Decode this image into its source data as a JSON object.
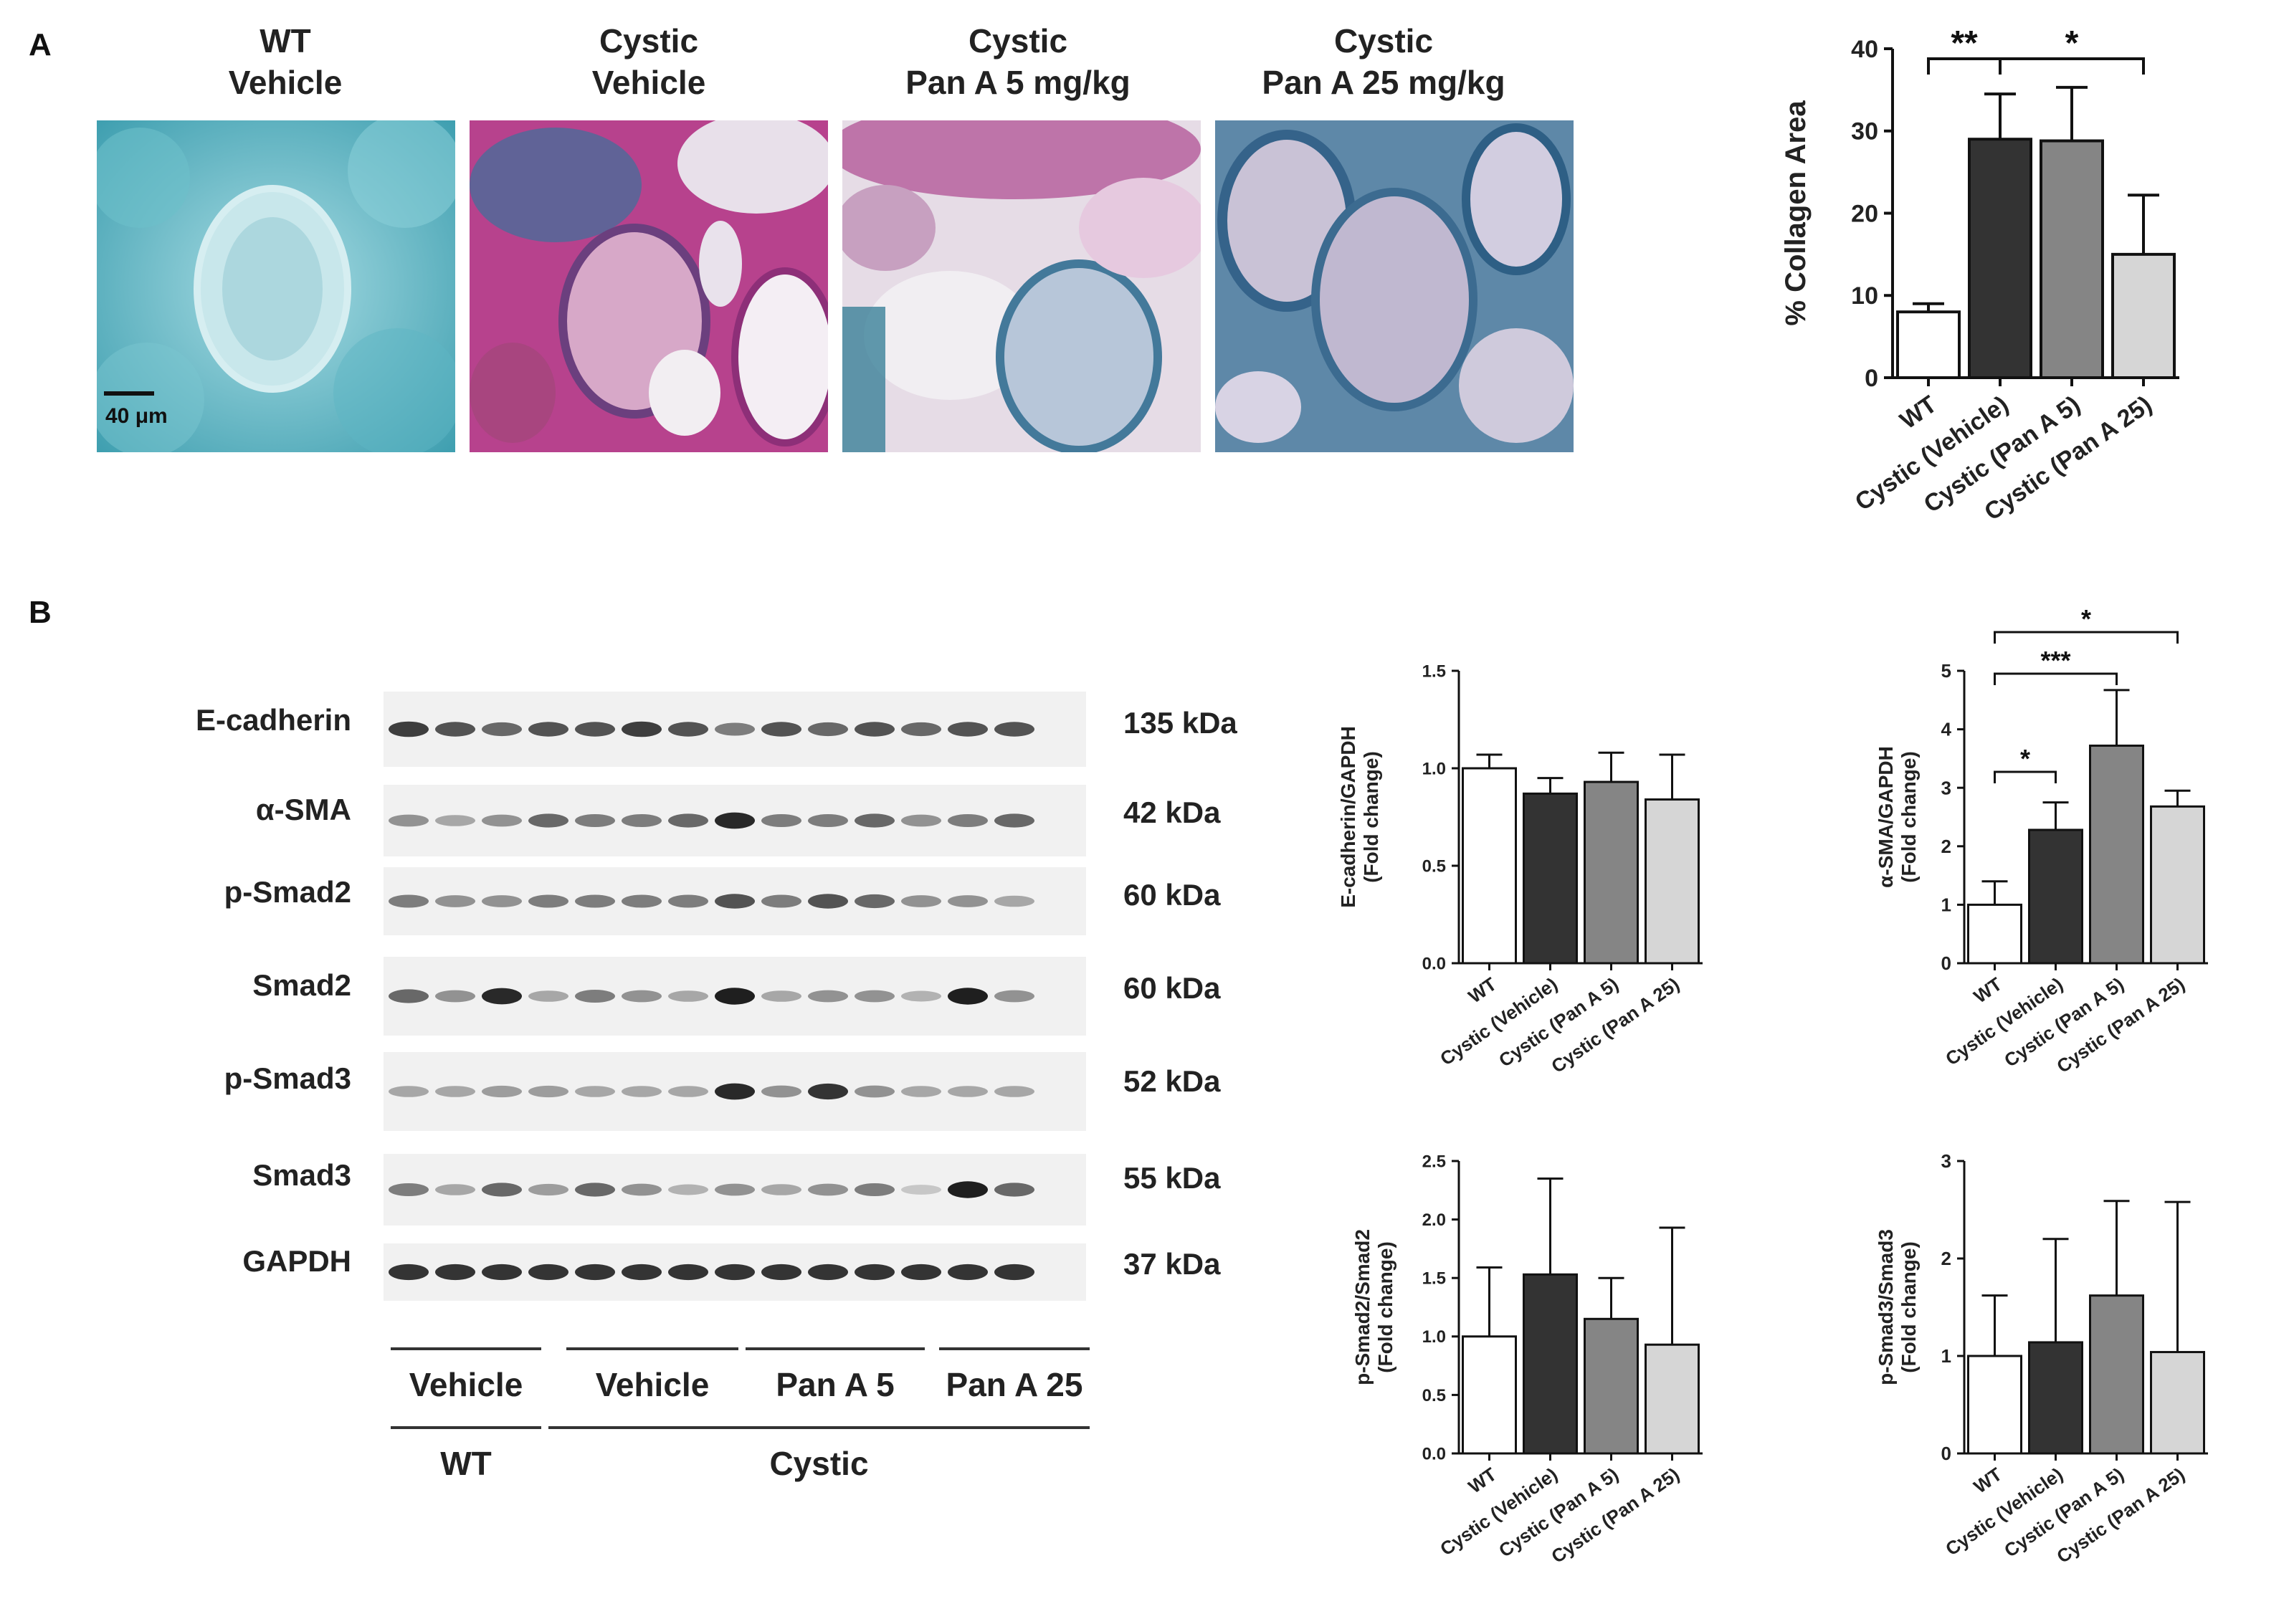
{
  "panels": {
    "a": "A",
    "b": "B"
  },
  "histology": {
    "titles": [
      {
        "line1": "WT",
        "line2": "Vehicle"
      },
      {
        "line1": "Cystic",
        "line2": "Vehicle"
      },
      {
        "line1": "Cystic",
        "line2": "Pan A 5 mg/kg"
      },
      {
        "line1": "Cystic",
        "line2": "Pan A 25 mg/kg"
      }
    ],
    "scale_bar": "40 μm"
  },
  "blot": {
    "proteins": [
      "E-cadherin",
      "α-SMA",
      "p-Smad2",
      "Smad2",
      "p-Smad3",
      "Smad3",
      "GAPDH"
    ],
    "kda": [
      "135 kDa",
      "42 kDa",
      "60 kDa",
      "60 kDa",
      "52 kDa",
      "55 kDa",
      "37 kDa"
    ],
    "treatments": [
      "Vehicle",
      "Vehicle",
      "Pan A 5",
      "Pan A 25"
    ],
    "genotypes": [
      "WT",
      "Cystic"
    ]
  },
  "colors": {
    "WT": "#ffffff",
    "Cystic (Vehicle)": "#333333",
    "Cystic (Pan A 5)": "#858585",
    "Cystic (Pan A 25)": "#d6d6d6",
    "bar_outline": "#111111"
  },
  "chart_data": [
    {
      "id": "collagen",
      "type": "bar",
      "categories": [
        "WT",
        "Cystic (Vehicle)",
        "Cystic (Pan A 5)",
        "Cystic (Pan A 25)"
      ],
      "values": [
        8,
        29,
        28.8,
        15
      ],
      "errors": [
        1,
        5.5,
        6.5,
        7.2
      ],
      "ylabel": "% Collagen Area",
      "ylim": [
        0,
        40
      ],
      "yticks": [
        "0",
        "10",
        "20",
        "30",
        "40"
      ],
      "significance": [
        {
          "from": 0,
          "to": 1,
          "label": "**"
        },
        {
          "from": 1,
          "to": 3,
          "label": "*"
        }
      ]
    },
    {
      "id": "ecad",
      "type": "bar",
      "categories": [
        "WT",
        "Cystic (Vehicle)",
        "Cystic (Pan A 5)",
        "Cystic (Pan A 25)"
      ],
      "values": [
        1.0,
        0.87,
        0.93,
        0.84
      ],
      "errors": [
        0.07,
        0.08,
        0.15,
        0.23
      ],
      "ylabel": [
        "E-cadherin/GAPDH",
        "(Fold change)"
      ],
      "ylim": [
        0,
        1.5
      ],
      "yticks": [
        "0.0",
        "0.5",
        "1.0",
        "1.5"
      ],
      "significance": []
    },
    {
      "id": "sma",
      "type": "bar",
      "categories": [
        "WT",
        "Cystic (Vehicle)",
        "Cystic (Pan A 5)",
        "Cystic (Pan A 25)"
      ],
      "values": [
        1.0,
        2.28,
        3.72,
        2.68
      ],
      "errors": [
        0.4,
        0.47,
        0.95,
        0.27
      ],
      "ylabel": [
        "α-SMA/GAPDH",
        "(Fold change)"
      ],
      "ylim": [
        0,
        5
      ],
      "yticks": [
        "0",
        "1",
        "2",
        "3",
        "4",
        "5"
      ],
      "significance": [
        {
          "from": 0,
          "to": 1,
          "label": "*"
        },
        {
          "from": 0,
          "to": 2,
          "label": "***"
        },
        {
          "from": 0,
          "to": 3,
          "label": "*"
        }
      ]
    },
    {
      "id": "psmad2",
      "type": "bar",
      "categories": [
        "WT",
        "Cystic (Vehicle)",
        "Cystic (Pan A 5)",
        "Cystic (Pan A 25)"
      ],
      "values": [
        1.0,
        1.53,
        1.15,
        0.93
      ],
      "errors": [
        0.59,
        0.82,
        0.35,
        1.0
      ],
      "ylabel": [
        "p-Smad2/Smad2",
        "(Fold change)"
      ],
      "ylim": [
        0,
        2.5
      ],
      "yticks": [
        "0.0",
        "0.5",
        "1.0",
        "1.5",
        "2.0",
        "2.5"
      ],
      "significance": []
    },
    {
      "id": "psmad3",
      "type": "bar",
      "categories": [
        "WT",
        "Cystic (Vehicle)",
        "Cystic (Pan A 5)",
        "Cystic (Pan A 25)"
      ],
      "values": [
        1.0,
        1.14,
        1.62,
        1.04
      ],
      "errors": [
        0.62,
        1.06,
        0.97,
        1.54
      ],
      "ylabel": [
        "p-Smad3/Smad3",
        "(Fold change)"
      ],
      "ylim": [
        0,
        3
      ],
      "yticks": [
        "0",
        "1",
        "2",
        "3"
      ],
      "significance": []
    }
  ]
}
